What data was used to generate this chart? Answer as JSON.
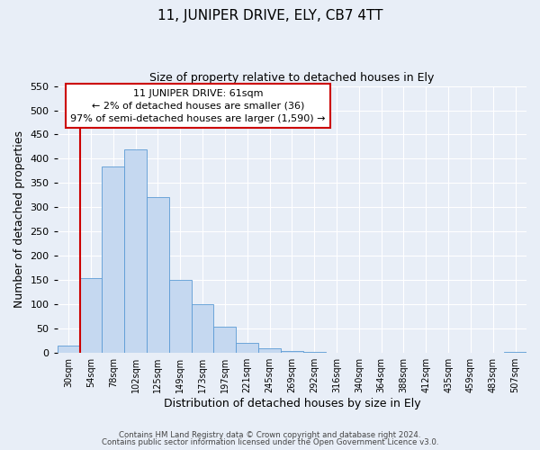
{
  "title": "11, JUNIPER DRIVE, ELY, CB7 4TT",
  "subtitle": "Size of property relative to detached houses in Ely",
  "xlabel": "Distribution of detached houses by size in Ely",
  "ylabel": "Number of detached properties",
  "bar_color": "#c5d8f0",
  "bar_edge_color": "#5b9bd5",
  "bin_labels": [
    "30sqm",
    "54sqm",
    "78sqm",
    "102sqm",
    "125sqm",
    "149sqm",
    "173sqm",
    "197sqm",
    "221sqm",
    "245sqm",
    "269sqm",
    "292sqm",
    "316sqm",
    "340sqm",
    "364sqm",
    "388sqm",
    "412sqm",
    "435sqm",
    "459sqm",
    "483sqm",
    "507sqm"
  ],
  "bin_values": [
    15,
    155,
    385,
    420,
    322,
    150,
    100,
    55,
    20,
    10,
    5,
    2,
    1,
    1,
    1,
    1,
    1,
    1,
    0,
    0,
    2
  ],
  "vline_color": "#cc0000",
  "vline_pos": 0.5,
  "ylim": [
    0,
    550
  ],
  "yticks": [
    0,
    50,
    100,
    150,
    200,
    250,
    300,
    350,
    400,
    450,
    500,
    550
  ],
  "annotation_title": "11 JUNIPER DRIVE: 61sqm",
  "annotation_line1": "← 2% of detached houses are smaller (36)",
  "annotation_line2": "97% of semi-detached houses are larger (1,590) →",
  "annotation_box_color": "#ffffff",
  "annotation_box_edge": "#cc0000",
  "footer1": "Contains HM Land Registry data © Crown copyright and database right 2024.",
  "footer2": "Contains public sector information licensed under the Open Government Licence v3.0.",
  "background_color": "#e8eef7",
  "grid_color": "#ffffff"
}
